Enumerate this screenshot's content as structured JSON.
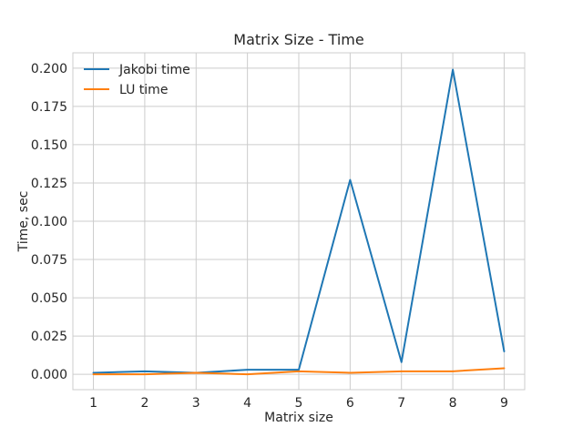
{
  "chart_data": {
    "type": "line",
    "title": "Matrix Size - Time",
    "xlabel": "Matrix size",
    "ylabel": "Time, sec",
    "x": [
      1,
      2,
      3,
      4,
      5,
      6,
      7,
      8,
      9
    ],
    "xlim": [
      0.6,
      9.4
    ],
    "ylim": [
      -0.01,
      0.21
    ],
    "x_ticks": [
      "1",
      "2",
      "3",
      "4",
      "5",
      "6",
      "7",
      "8",
      "9"
    ],
    "y_ticks": [
      "0.000",
      "0.025",
      "0.050",
      "0.075",
      "0.100",
      "0.125",
      "0.150",
      "0.175",
      "0.200"
    ],
    "grid": true,
    "legend_position": "top-left",
    "series": [
      {
        "name": "Jakobi time",
        "color": "#1f77b4",
        "values": [
          0.001,
          0.002,
          0.001,
          0.003,
          0.003,
          0.127,
          0.008,
          0.199,
          0.015
        ]
      },
      {
        "name": "LU time",
        "color": "#ff7f0e",
        "values": [
          0.0,
          0.0,
          0.001,
          0.0,
          0.002,
          0.001,
          0.002,
          0.002,
          0.004
        ]
      }
    ]
  }
}
